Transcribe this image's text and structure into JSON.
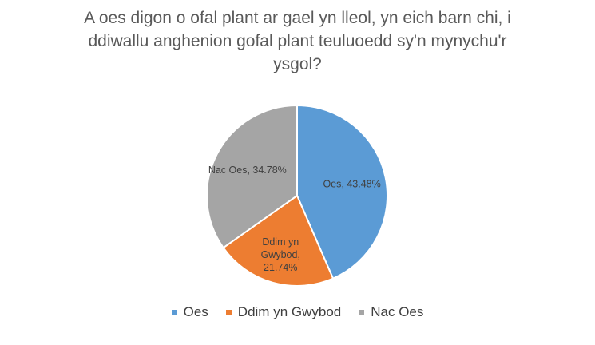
{
  "chart_data": {
    "type": "pie",
    "title_lines": [
      "A oes digon o ofal plant ar gael yn lleol, yn eich barn chi, i",
      "ddiwallu anghenion gofal plant teuluoedd sy'n mynychu'r",
      "ysgol?"
    ],
    "categories": [
      "Oes",
      "Ddim yn Gwybod",
      "Nac Oes"
    ],
    "values": [
      43.48,
      21.74,
      34.78
    ],
    "unit": "%",
    "colors": [
      "#5b9bd5",
      "#ed7d31",
      "#a5a5a5"
    ],
    "data_labels": [
      [
        "Oes, 43.48%"
      ],
      [
        "Ddim yn",
        "Gwybod,",
        "21.74%"
      ],
      [
        "Nac Oes, 34.78%"
      ]
    ],
    "legend_position": "bottom"
  }
}
